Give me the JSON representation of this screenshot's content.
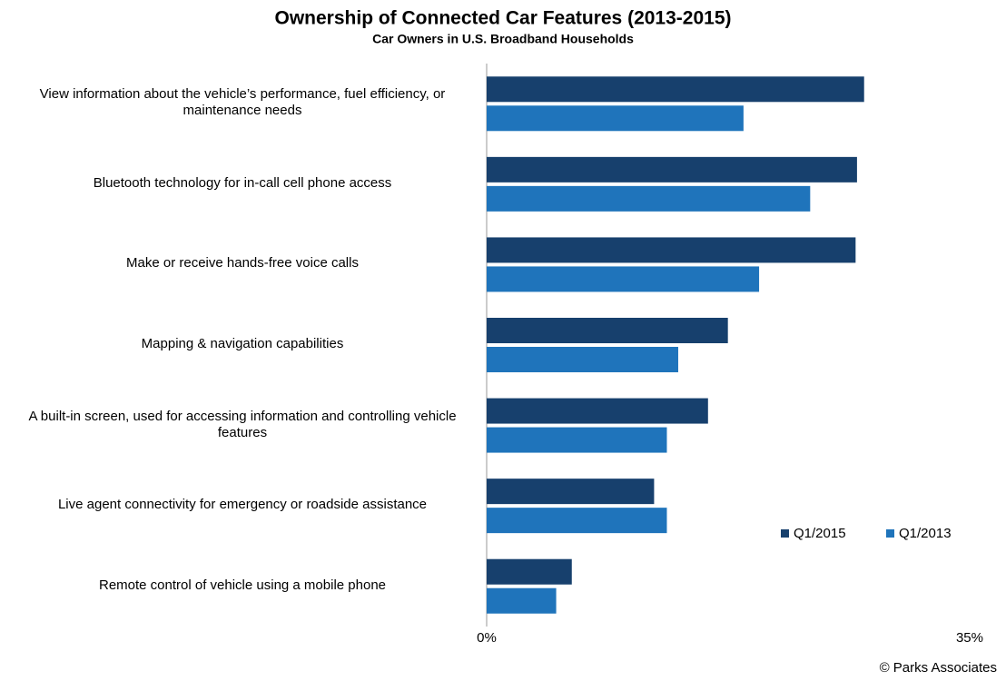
{
  "chart_data": {
    "type": "bar",
    "orientation": "horizontal",
    "title": "Ownership of Connected Car Features (2013-2015)",
    "subtitle": "Car Owners in U.S. Broadband Households",
    "source": "© Parks Associates",
    "categories": [
      "View information about the vehicle’s performance, fuel efficiency, or maintenance  needs",
      "Bluetooth technology for in-call cell phone access",
      "Make or receive hands-free voice calls",
      "Mapping & navigation capabilities",
      "A built-in screen, used for accessing information and controlling vehicle features",
      "Live agent connectivity for emergency or roadside assistance",
      "Remote control of vehicle using a mobile phone"
    ],
    "series": [
      {
        "name": "Q1/2015",
        "color": "#17406d",
        "values": [
          26.6,
          26.1,
          26.0,
          17.0,
          15.6,
          11.8,
          6.0
        ]
      },
      {
        "name": "Q1/2013",
        "color": "#1f74bb",
        "values": [
          18.1,
          22.8,
          19.2,
          13.5,
          12.7,
          12.7,
          4.9
        ]
      }
    ],
    "xlim": [
      0,
      35
    ],
    "xticks": [
      {
        "value": 0,
        "label": "0%"
      },
      {
        "value": 35,
        "label": "35%"
      }
    ],
    "legend": "lower-right"
  }
}
